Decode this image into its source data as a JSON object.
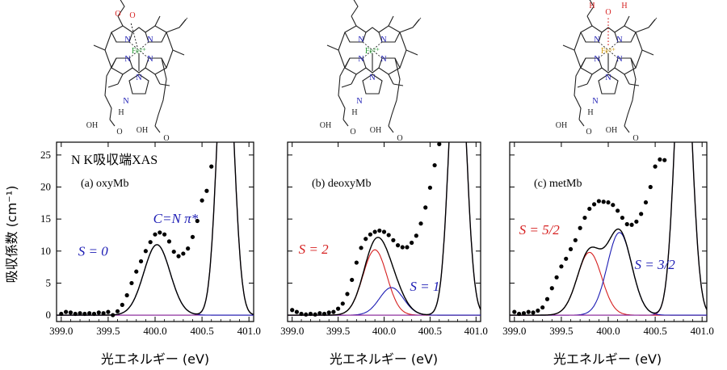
{
  "figure": {
    "ylabel": "吸収係数 (cm⁻¹)",
    "xlabel": "光エネルギー (eV)",
    "xticks": [
      "399.0",
      "399.5",
      "400.0",
      "400.5",
      "401.0"
    ],
    "yticks": [
      "0",
      "5",
      "10",
      "15",
      "20",
      "25"
    ],
    "colors": {
      "fit_total": "#000000",
      "high_spin": "#d62020",
      "low_spin": "#1c1cb4",
      "edge": "#8c2c9c",
      "data": "#000000"
    }
  },
  "molecules": [
    {
      "metal": "Fe²⁺",
      "ligand_label": "O",
      "ligand_label2": "O",
      "proximal": "N",
      "imidazole_nh": "N",
      "imidazole_h": "H",
      "acid1": "OH",
      "acid2": "OH",
      "acid1_o": "O",
      "acid2_o": "O",
      "pyrrole_n": [
        "N",
        "N",
        "N",
        "N"
      ]
    },
    {
      "metal": "Fe²⁺",
      "proximal": "N",
      "imidazole_nh": "N",
      "imidazole_h": "H",
      "acid1": "OH",
      "acid2": "OH",
      "acid1_o": "O",
      "acid2_o": "O",
      "pyrrole_n": [
        "N",
        "N",
        "N",
        "N"
      ]
    },
    {
      "metal": "Fe³⁺",
      "ligand_label": "O",
      "ligand_h1": "H",
      "ligand_h2": "H",
      "proximal": "N",
      "imidazole_nh": "N",
      "imidazole_h": "H",
      "acid1": "OH",
      "acid2": "OH",
      "acid1_o": "O",
      "acid2_o": "O",
      "pyrrole_n": [
        "N",
        "N",
        "N",
        "N"
      ]
    }
  ],
  "chart_data": [
    {
      "type": "line",
      "header": "N K吸収端XAS",
      "title": "(a) oxyMb",
      "xlim": [
        398.95,
        401.05
      ],
      "ylim": [
        -1,
        27
      ],
      "annotations": [
        {
          "text": "C=N π*",
          "color": "#1c1cb4"
        },
        {
          "text": "S = 0",
          "color": "#1c1cb4"
        }
      ],
      "peaks": [
        {
          "name": "S = 0",
          "center": 400.02,
          "height": 11.0,
          "width": 0.14,
          "color": "#1c1cb4"
        }
      ],
      "edge": {
        "center": 400.75,
        "height": 48,
        "width": 0.085
      },
      "points": {
        "x": [
          399.0,
          399.05,
          399.1,
          399.15,
          399.2,
          399.25,
          399.3,
          399.35,
          399.4,
          399.45,
          399.5,
          399.55,
          399.6,
          399.65,
          399.7,
          399.75,
          399.8,
          399.85,
          399.9,
          399.95,
          400.0,
          400.05,
          400.1,
          400.15,
          400.2,
          400.25,
          400.3,
          400.35,
          400.4,
          400.45,
          400.5,
          400.55,
          400.6
        ],
        "y": [
          0.2,
          0.5,
          0.4,
          0.2,
          0.3,
          0.2,
          0.3,
          0.2,
          0.4,
          0.3,
          0.5,
          0.0,
          0.6,
          1.6,
          3.1,
          5.0,
          6.8,
          8.4,
          10.0,
          11.4,
          12.6,
          12.9,
          12.6,
          11.5,
          9.9,
          9.2,
          9.6,
          10.4,
          12.2,
          14.7,
          17.9,
          19.4,
          23.2
        ]
      }
    },
    {
      "type": "line",
      "title": "(b) deoxyMb",
      "xlim": [
        398.95,
        401.05
      ],
      "ylim": [
        -1,
        27
      ],
      "annotations": [
        {
          "text": "S = 2",
          "color": "#d62020"
        },
        {
          "text": "S = 1",
          "color": "#1c1cb4"
        }
      ],
      "peaks": [
        {
          "name": "S = 2",
          "center": 399.9,
          "height": 10.2,
          "width": 0.13,
          "color": "#d62020"
        },
        {
          "name": "S = 1",
          "center": 400.08,
          "height": 4.3,
          "width": 0.13,
          "color": "#1c1cb4"
        }
      ],
      "edge": {
        "center": 400.8,
        "height": 48,
        "width": 0.088
      },
      "points": {
        "x": [
          399.0,
          399.05,
          399.1,
          399.15,
          399.2,
          399.25,
          399.3,
          399.35,
          399.4,
          399.45,
          399.5,
          399.55,
          399.6,
          399.65,
          399.7,
          399.75,
          399.8,
          399.85,
          399.9,
          399.95,
          400.0,
          400.05,
          400.1,
          400.15,
          400.2,
          400.25,
          400.3,
          400.35,
          400.4,
          400.45,
          400.5,
          400.55,
          400.6
        ],
        "y": [
          0.8,
          0.5,
          0.2,
          0.1,
          0.2,
          0.1,
          0.3,
          0.2,
          0.4,
          0.5,
          1.0,
          1.8,
          3.3,
          5.5,
          8.2,
          10.5,
          11.9,
          12.6,
          13.0,
          13.2,
          13.0,
          12.5,
          11.7,
          10.9,
          10.6,
          10.6,
          11.3,
          12.4,
          14.3,
          16.8,
          19.9,
          23.4,
          26.7
        ]
      }
    },
    {
      "type": "line",
      "title": "(c) metMb",
      "xlim": [
        398.95,
        401.05
      ],
      "ylim": [
        -1,
        27
      ],
      "annotations": [
        {
          "text": "S = 5/2",
          "color": "#d62020"
        },
        {
          "text": "S = 3/2",
          "color": "#1c1cb4"
        }
      ],
      "peaks": [
        {
          "name": "S = 5/2",
          "center": 399.8,
          "height": 9.8,
          "width": 0.13,
          "color": "#d62020"
        },
        {
          "name": "S = 3/2",
          "center": 400.12,
          "height": 12.9,
          "width": 0.13,
          "color": "#1c1cb4"
        }
      ],
      "edge": {
        "center": 400.8,
        "height": 48,
        "width": 0.088
      },
      "points": {
        "x": [
          399.0,
          399.05,
          399.1,
          399.15,
          399.2,
          399.25,
          399.3,
          399.35,
          399.4,
          399.45,
          399.5,
          399.55,
          399.6,
          399.65,
          399.7,
          399.75,
          399.8,
          399.85,
          399.9,
          399.95,
          400.0,
          400.05,
          400.1,
          400.15,
          400.2,
          400.25,
          400.3,
          400.35,
          400.4,
          400.45,
          400.5,
          400.55,
          400.6
        ],
        "y": [
          0.5,
          0.2,
          0.3,
          0.5,
          0.4,
          0.7,
          1.2,
          2.5,
          4.2,
          5.9,
          7.6,
          8.8,
          10.3,
          11.7,
          13.6,
          15.2,
          16.6,
          17.3,
          17.8,
          17.7,
          17.6,
          17.2,
          16.3,
          15.2,
          14.2,
          14.1,
          14.6,
          15.8,
          17.6,
          20.0,
          23.2,
          24.3,
          24.2
        ]
      }
    }
  ]
}
